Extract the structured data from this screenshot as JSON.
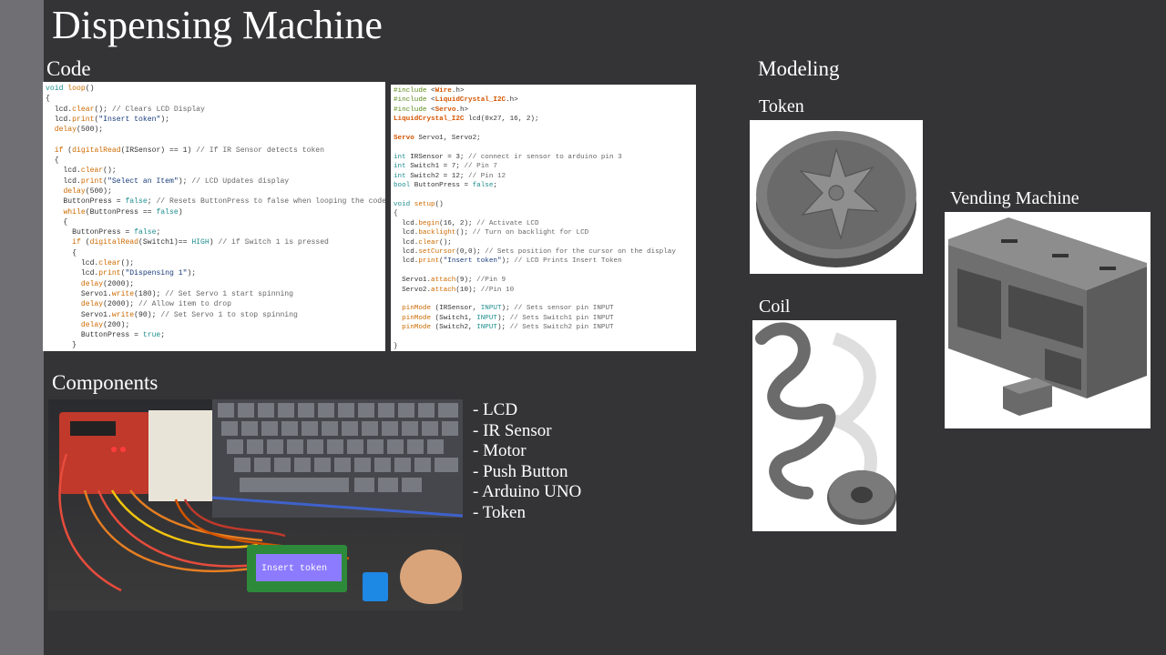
{
  "slide": {
    "title": "Dispensing Machine",
    "sections": {
      "code": "Code",
      "components": "Components",
      "modeling": "Modeling",
      "token": "Token",
      "coil": "Coil",
      "vending_machine": "Vending Machine"
    },
    "components_list": [
      "- LCD",
      "- IR Sensor",
      "- Motor",
      "- Push Button",
      "- Arduino UNO",
      "- Token"
    ],
    "photo": {
      "lcd_text": "Insert token"
    }
  },
  "colors": {
    "background": "#343436",
    "sidebar": "#6f6f74",
    "text": "#ffffff"
  }
}
